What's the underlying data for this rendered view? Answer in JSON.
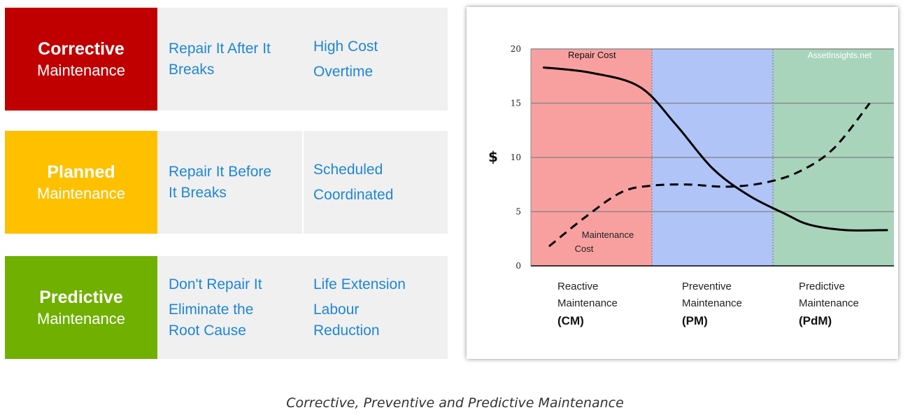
{
  "rows": [
    {
      "title": "Corrective",
      "subtitle": "Maintenance",
      "color": "#c00000",
      "col1": [
        "Repair It After It",
        "Breaks"
      ],
      "col2": [
        "High Cost",
        "Overtime"
      ]
    },
    {
      "title": "Planned",
      "subtitle": "Maintenance",
      "color": "#ffc000",
      "col1": [
        "Repair It Before",
        "It Breaks"
      ],
      "col2": [
        "Scheduled",
        "Coordinated"
      ]
    },
    {
      "title": "Predictive",
      "subtitle": "Maintenance",
      "color": "#70b000",
      "col1": [
        "Don't Repair It",
        "Eliminate the",
        "Root Cause"
      ],
      "col2": [
        "Life Extension",
        "Labour",
        "Reduction"
      ]
    }
  ],
  "caption": "Corrective, Preventive and Predictive Maintenance",
  "chart_data": {
    "type": "line",
    "ylabel": "$",
    "ylim": [
      0,
      20
    ],
    "xlim": [
      0,
      3
    ],
    "yticks": [
      0,
      5,
      10,
      15,
      20
    ],
    "watermark": "AssetInsights.net",
    "grid": true,
    "regions": [
      {
        "lines": [
          "Reactive",
          "Maintenance"
        ],
        "abbr": "(CM)",
        "color": "#f8a0a0"
      },
      {
        "lines": [
          "Preventive",
          "Maintenance"
        ],
        "abbr": "(PM)",
        "color": "#b0c4f8"
      },
      {
        "lines": [
          "Predictive",
          "Maintenance"
        ],
        "abbr": "(PdM)",
        "color": "#a8d4bc"
      }
    ],
    "series": [
      {
        "name": "Repair Cost",
        "label_lines": [
          "Repair Cost"
        ],
        "style": "solid",
        "x": [
          0.1,
          0.5,
          0.9,
          1.2,
          1.5,
          1.8,
          2.1,
          2.3,
          2.6,
          2.95
        ],
        "y": [
          18.3,
          17.8,
          16.5,
          13.0,
          9.0,
          6.5,
          4.8,
          3.8,
          3.3,
          3.3
        ]
      },
      {
        "name": "Maintenance Cost",
        "label_lines": [
          "Maintenance",
          "Cost"
        ],
        "style": "dashed",
        "x": [
          0.15,
          0.45,
          0.75,
          1.0,
          1.3,
          1.6,
          1.9,
          2.2,
          2.5,
          2.8
        ],
        "y": [
          1.8,
          4.5,
          6.8,
          7.4,
          7.5,
          7.3,
          7.6,
          8.6,
          10.8,
          15.0
        ]
      }
    ]
  }
}
